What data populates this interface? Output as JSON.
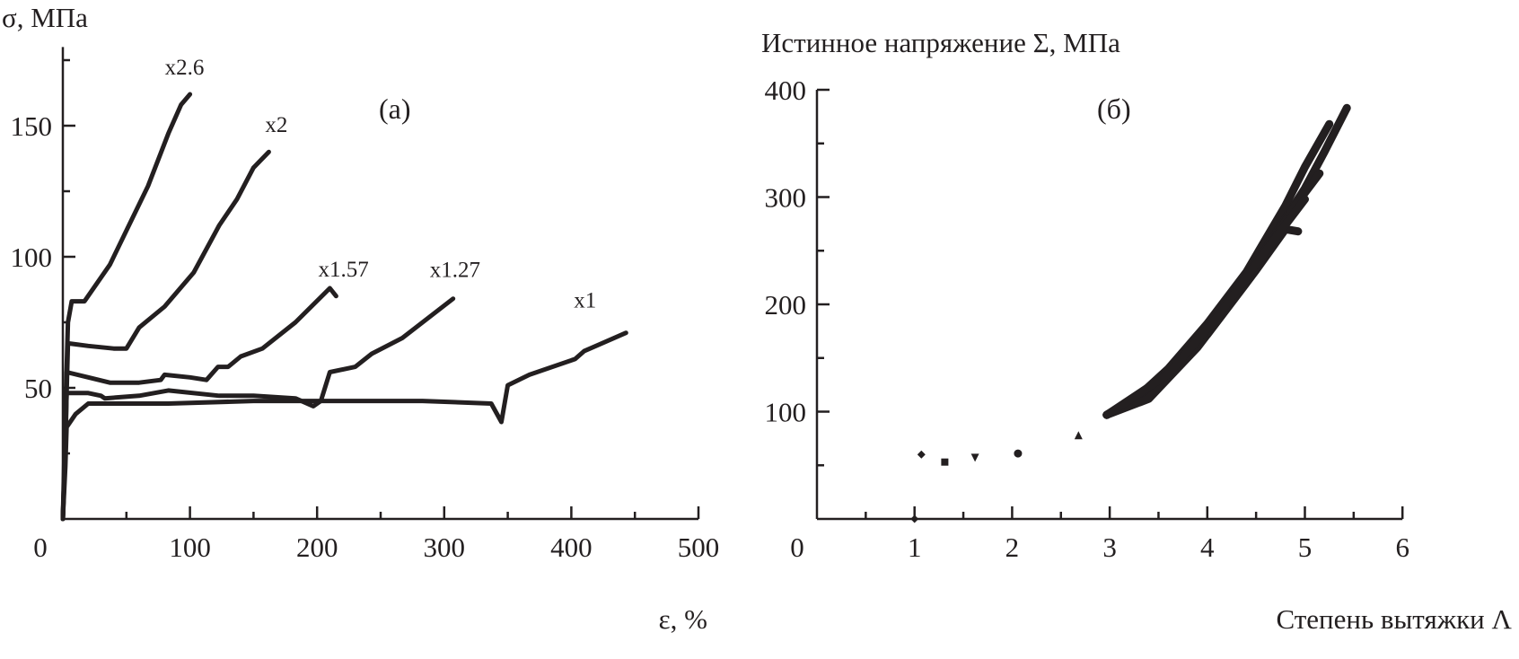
{
  "chart_data": [
    {
      "type": "line",
      "panel_label": "(а)",
      "xlabel": "ε, %",
      "ylabel": "σ, МПа",
      "xlim": [
        0,
        500
      ],
      "ylim": [
        0,
        180
      ],
      "xticks": [
        0,
        100,
        200,
        300,
        400,
        500
      ],
      "yticks": [
        50,
        100,
        150
      ],
      "grid": false,
      "series": [
        {
          "name": "x2.6",
          "points": [
            [
              0,
              0
            ],
            [
              2,
              40
            ],
            [
              4,
              75
            ],
            [
              7,
              83
            ],
            [
              17,
              83
            ],
            [
              37,
              97
            ],
            [
              50,
              110
            ],
            [
              67,
              127
            ],
            [
              83,
              147
            ],
            [
              93,
              158
            ],
            [
              100,
              162
            ]
          ]
        },
        {
          "name": "x2",
          "points": [
            [
              0,
              0
            ],
            [
              2,
              30
            ],
            [
              4,
              67
            ],
            [
              20,
              66
            ],
            [
              40,
              65
            ],
            [
              50,
              65
            ],
            [
              60,
              73
            ],
            [
              80,
              81
            ],
            [
              103,
              94
            ],
            [
              123,
              112
            ],
            [
              137,
              122
            ],
            [
              150,
              134
            ],
            [
              162,
              140
            ]
          ]
        },
        {
          "name": "x1.57",
          "points": [
            [
              0,
              0
            ],
            [
              2,
              30
            ],
            [
              3,
              56
            ],
            [
              20,
              54
            ],
            [
              37,
              52
            ],
            [
              60,
              52
            ],
            [
              77,
              53
            ],
            [
              80,
              55
            ],
            [
              100,
              54
            ],
            [
              113,
              53
            ],
            [
              122,
              58
            ],
            [
              130,
              58
            ],
            [
              140,
              62
            ],
            [
              157,
              65
            ],
            [
              183,
              75
            ],
            [
              210,
              88
            ],
            [
              215,
              85
            ]
          ]
        },
        {
          "name": "x1.27",
          "points": [
            [
              0,
              0
            ],
            [
              2,
              25
            ],
            [
              3,
              48
            ],
            [
              20,
              48
            ],
            [
              30,
              47
            ],
            [
              33,
              46
            ],
            [
              60,
              47
            ],
            [
              83,
              49
            ],
            [
              123,
              47
            ],
            [
              150,
              47
            ],
            [
              183,
              46
            ],
            [
              197,
              43
            ],
            [
              203,
              45
            ],
            [
              210,
              56
            ],
            [
              230,
              58
            ],
            [
              243,
              63
            ],
            [
              267,
              69
            ],
            [
              307,
              84
            ]
          ]
        },
        {
          "name": "x1",
          "points": [
            [
              0,
              0
            ],
            [
              2,
              20
            ],
            [
              3,
              35
            ],
            [
              10,
              40
            ],
            [
              20,
              44
            ],
            [
              83,
              44
            ],
            [
              150,
              45
            ],
            [
              283,
              45
            ],
            [
              337,
              44
            ],
            [
              345,
              37
            ],
            [
              350,
              51
            ],
            [
              367,
              55
            ],
            [
              403,
              61
            ],
            [
              410,
              64
            ],
            [
              443,
              71
            ]
          ]
        }
      ]
    },
    {
      "type": "scatter",
      "panel_label": "(б)",
      "xlabel": "Степень вытяжки  Λ",
      "ylabel": "Истинное напряжение Σ, МПа",
      "xlim": [
        0,
        6
      ],
      "ylim": [
        0,
        400
      ],
      "xticks": [
        0,
        1,
        2,
        3,
        4,
        5,
        6
      ],
      "yticks": [
        100,
        200,
        300,
        400
      ],
      "grid": false,
      "points": [
        {
          "x": 1.0,
          "y": 0,
          "marker": "diamond"
        },
        {
          "x": 1.07,
          "y": 60,
          "marker": "diamond"
        },
        {
          "x": 1.31,
          "y": 53,
          "marker": "square"
        },
        {
          "x": 1.62,
          "y": 57,
          "marker": "triangle-down"
        },
        {
          "x": 2.06,
          "y": 61,
          "marker": "circle"
        },
        {
          "x": 2.68,
          "y": 78,
          "marker": "triangle-up"
        }
      ],
      "band_series": [
        [
          [
            2.97,
            97
          ],
          [
            3.3,
            115
          ],
          [
            3.6,
            140
          ],
          [
            4.0,
            182
          ],
          [
            4.4,
            230
          ],
          [
            4.8,
            292
          ],
          [
            5.0,
            328
          ],
          [
            5.25,
            368
          ]
        ],
        [
          [
            2.97,
            97
          ],
          [
            3.4,
            120
          ],
          [
            3.8,
            157
          ],
          [
            4.2,
            202
          ],
          [
            4.6,
            252
          ],
          [
            5.0,
            308
          ],
          [
            5.2,
            342
          ],
          [
            5.43,
            383
          ]
        ],
        [
          [
            2.97,
            97
          ],
          [
            3.5,
            125
          ],
          [
            4.0,
            172
          ],
          [
            4.5,
            232
          ],
          [
            4.8,
            270
          ],
          [
            4.93,
            268
          ]
        ],
        [
          [
            2.97,
            97
          ],
          [
            3.4,
            112
          ],
          [
            3.9,
            160
          ],
          [
            4.4,
            220
          ],
          [
            4.9,
            292
          ],
          [
            5.15,
            322
          ]
        ],
        [
          [
            2.97,
            97
          ],
          [
            3.6,
            135
          ],
          [
            4.1,
            188
          ],
          [
            4.6,
            250
          ],
          [
            5.0,
            298
          ]
        ]
      ]
    }
  ]
}
